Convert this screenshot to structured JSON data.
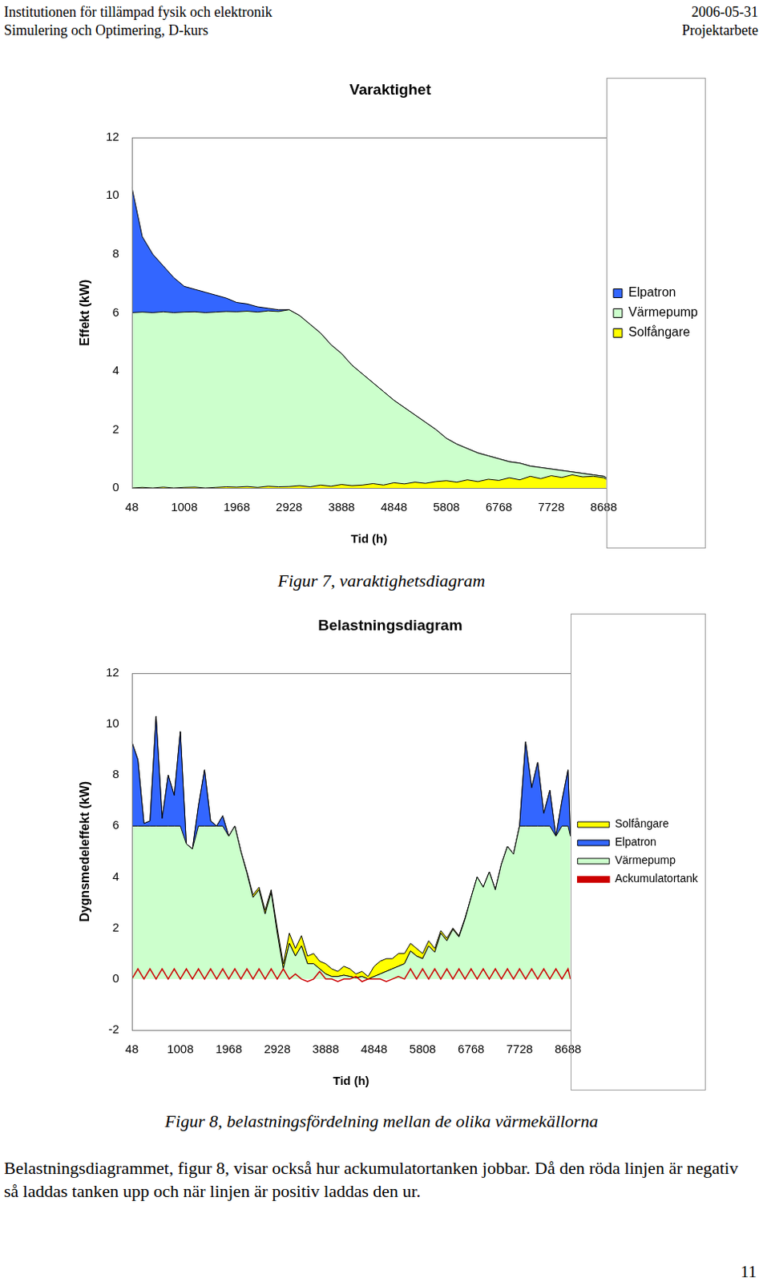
{
  "header": {
    "left": [
      "Institutionen för tillämpad fysik och elektronik",
      "Simulering och Optimering, D-kurs"
    ],
    "right": [
      "2006-05-31",
      "Projektarbete"
    ]
  },
  "chart_data": [
    {
      "type": "area",
      "title": "Varaktighet",
      "xlabel": "Tid (h)",
      "ylabel": "Effekt (kW)",
      "stacked": true,
      "grid": false,
      "legend": "right",
      "x": [
        48,
        240,
        432,
        624,
        816,
        1008,
        1200,
        1392,
        1584,
        1776,
        1968,
        2160,
        2352,
        2544,
        2736,
        2928,
        3120,
        3312,
        3504,
        3696,
        3888,
        4080,
        4272,
        4464,
        4656,
        4848,
        5040,
        5232,
        5424,
        5616,
        5808,
        6000,
        6192,
        6384,
        6576,
        6768,
        6960,
        7152,
        7344,
        7536,
        7728,
        7920,
        8112,
        8304,
        8496,
        8688,
        8736
      ],
      "xlim": [
        48,
        8736
      ],
      "xticks": [
        48,
        1008,
        1968,
        2928,
        3888,
        4848,
        5808,
        6768,
        7728,
        8688
      ],
      "ylim": [
        0,
        12
      ],
      "yticks": [
        0,
        2,
        4,
        6,
        8,
        10,
        12
      ],
      "series": [
        {
          "name": "Elpatron",
          "color": "#3366ff",
          "values": [
            4.3,
            2.58,
            2.0,
            1.57,
            1.2,
            0.88,
            0.77,
            0.7,
            0.58,
            0.46,
            0.32,
            0.25,
            0.18,
            0.09,
            0.06,
            0,
            0,
            0,
            0,
            0,
            0,
            0,
            0,
            0,
            0,
            0,
            0,
            0,
            0,
            0,
            0,
            0,
            0,
            0,
            0,
            0,
            0,
            0,
            0,
            0,
            0,
            0,
            0,
            0,
            0,
            0,
            0
          ]
        },
        {
          "name": "Värmepump",
          "color": "#ccffcc",
          "values": [
            6.0,
            6.0,
            6.0,
            6.0,
            6.0,
            6.0,
            6.0,
            6.0,
            6.0,
            6.0,
            6.0,
            6.0,
            6.0,
            6.0,
            6.0,
            6.05,
            5.82,
            5.56,
            5.2,
            4.84,
            4.48,
            4.12,
            3.8,
            3.45,
            3.2,
            2.82,
            2.61,
            2.3,
            2.09,
            1.78,
            1.45,
            1.3,
            1.07,
            0.98,
            0.8,
            0.74,
            0.55,
            0.57,
            0.35,
            0.38,
            0.23,
            0.24,
            0.1,
            0.12,
            0.05,
            0.05,
            0.05
          ]
        },
        {
          "name": "Solfångare",
          "color": "#ffff00",
          "values": [
            0,
            0.02,
            0,
            0.03,
            0,
            0.02,
            0.03,
            0,
            0.02,
            0.04,
            0.03,
            0.05,
            0.02,
            0.06,
            0.04,
            0.05,
            0.08,
            0.04,
            0.1,
            0.06,
            0.12,
            0.08,
            0.1,
            0.15,
            0.1,
            0.18,
            0.14,
            0.2,
            0.16,
            0.22,
            0.25,
            0.2,
            0.28,
            0.22,
            0.3,
            0.26,
            0.35,
            0.28,
            0.4,
            0.32,
            0.42,
            0.36,
            0.45,
            0.38,
            0.4,
            0.35,
            0.3
          ]
        }
      ]
    },
    {
      "type": "area",
      "title": "Belastningsdiagram",
      "xlabel": "Tid (h)",
      "ylabel": "Dygnsmedeleffekt (kW)",
      "stacked": true,
      "grid": false,
      "legend": "right",
      "x": [
        48,
        168,
        288,
        408,
        528,
        648,
        768,
        888,
        1008,
        1128,
        1248,
        1368,
        1488,
        1608,
        1728,
        1848,
        1968,
        2088,
        2208,
        2328,
        2448,
        2568,
        2688,
        2808,
        2928,
        3048,
        3168,
        3288,
        3408,
        3528,
        3648,
        3768,
        3888,
        4008,
        4128,
        4248,
        4368,
        4488,
        4608,
        4728,
        4848,
        4968,
        5088,
        5208,
        5328,
        5448,
        5568,
        5688,
        5808,
        5928,
        6048,
        6168,
        6288,
        6408,
        6528,
        6648,
        6768,
        6888,
        7008,
        7128,
        7248,
        7368,
        7488,
        7608,
        7728,
        7848,
        7968,
        8088,
        8208,
        8328,
        8448,
        8568,
        8688,
        8736
      ],
      "xlim": [
        48,
        8736
      ],
      "xticks": [
        48,
        1008,
        1968,
        2928,
        3888,
        4848,
        5808,
        6768,
        7728,
        8688
      ],
      "ylim": [
        -2,
        12
      ],
      "yticks": [
        -2,
        0,
        2,
        4,
        6,
        8,
        10,
        12
      ],
      "series": [
        {
          "name": "Solfångare",
          "color": "#ffff00",
          "values": [
            0,
            0,
            0,
            0,
            0,
            0,
            0,
            0,
            0,
            0,
            0,
            0,
            0,
            0,
            0,
            0,
            0,
            0,
            0,
            0.05,
            0.1,
            0.1,
            0.15,
            0.1,
            0.2,
            0.2,
            0.4,
            0.3,
            0.4,
            0.3,
            0.4,
            0.3,
            0.4,
            0.3,
            0.2,
            0.35,
            0.3,
            0.15,
            0.2,
            0.1,
            0.4,
            0.5,
            0.5,
            0.4,
            0.5,
            0.4,
            0.3,
            0.3,
            0.2,
            0.2,
            0.15,
            0.1,
            0.1,
            0.05,
            0.05,
            0.05,
            0,
            0,
            0,
            0,
            0,
            0,
            0,
            0,
            0,
            0,
            0,
            0,
            0,
            0,
            0,
            0,
            0,
            0
          ]
        },
        {
          "name": "Elpatron",
          "color": "#3366ff",
          "values": [
            3.3,
            2.6,
            0.1,
            0.2,
            4.3,
            0.3,
            2.0,
            1.2,
            3.7,
            0,
            0,
            0.8,
            2.2,
            0.2,
            0,
            0.4,
            0,
            0,
            0,
            0,
            0,
            0,
            0,
            0,
            0,
            0,
            0,
            0,
            0,
            0,
            0,
            0,
            0,
            0,
            0,
            0,
            0,
            0,
            0,
            0,
            0,
            0,
            0,
            0,
            0,
            0,
            0,
            0,
            0,
            0,
            0,
            0,
            0,
            0,
            0,
            0,
            0,
            0,
            0,
            0,
            0,
            0,
            0,
            0,
            0,
            3.3,
            1.5,
            2.5,
            0.5,
            1.4,
            0,
            1.0,
            2.2,
            0
          ]
        },
        {
          "name": "Värmepump",
          "color": "#ccffcc",
          "values": [
            6,
            6,
            6,
            6,
            6,
            6,
            6,
            6,
            6,
            5.3,
            5.1,
            6,
            6,
            6,
            6,
            6,
            5.6,
            6.0,
            5.0,
            4.15,
            3.2,
            3.5,
            2.55,
            3.4,
            1.8,
            0.4,
            1.4,
            0.9,
            1.3,
            0.6,
            0.6,
            0.4,
            0.2,
            0.1,
            0.1,
            0.15,
            0.1,
            0.05,
            0.1,
            0,
            0.1,
            0.2,
            0.3,
            0.4,
            0.5,
            0.6,
            1.1,
            0.9,
            0.8,
            1.3,
            1.05,
            1.8,
            1.5,
            1.95,
            1.65,
            2.35,
            3.2,
            4.0,
            3.6,
            4.2,
            3.5,
            4.5,
            5.2,
            4.9,
            6.0,
            6,
            6,
            6,
            6,
            6,
            5.6,
            6,
            6,
            5.6
          ]
        },
        {
          "name": "Ackumulatortank",
          "color": "#cc0000",
          "type": "line",
          "values": [
            0,
            0.4,
            0,
            0.4,
            0,
            0.4,
            0,
            0.4,
            0,
            0.4,
            0,
            0.4,
            0,
            0.4,
            0,
            0.4,
            0,
            0.4,
            0,
            0.4,
            0,
            0.4,
            0,
            0.4,
            0,
            0.4,
            0,
            0.2,
            0,
            -0.1,
            0,
            0.3,
            0,
            0,
            -0.1,
            0,
            0,
            0.1,
            -0.1,
            0,
            0,
            0,
            -0.1,
            0,
            0.1,
            0,
            0.4,
            0,
            0.4,
            0,
            0.4,
            0,
            0.4,
            0,
            0.4,
            0,
            0.4,
            0,
            0.4,
            0,
            0.4,
            0,
            0.4,
            0,
            0.4,
            0,
            0.4,
            0,
            0.4,
            0,
            0.4,
            0,
            0.4,
            0
          ]
        }
      ]
    }
  ],
  "captions": [
    "Figur 7, varaktighetsdiagram",
    "Figur 8, belastningsfördelning mellan de olika värmekällorna"
  ],
  "body": "Belastningsdiagrammet, figur 8, visar också hur ackumulatortanken jobbar. Då den röda linjen är negativ så laddas tanken upp och när linjen är positiv laddas den ur.",
  "page_number": 11
}
